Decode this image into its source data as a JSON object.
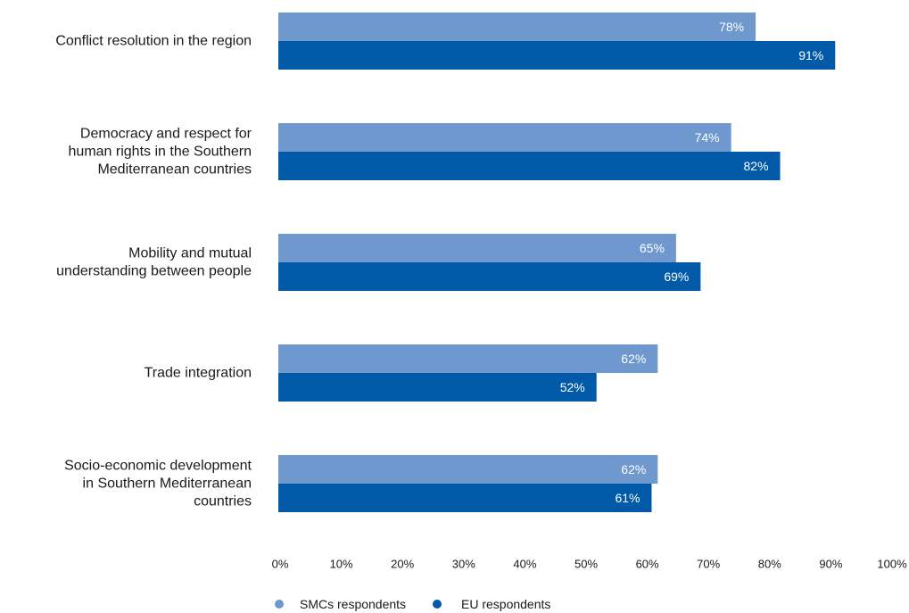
{
  "chart_data": {
    "type": "bar",
    "orientation": "horizontal",
    "categories": [
      [
        "Conflict resolution in the region"
      ],
      [
        "Democracy and respect for",
        "human rights in the Southern",
        "Mediterranean countries"
      ],
      [
        "Mobility and mutual",
        "understanding between people"
      ],
      [
        "Trade integration"
      ],
      [
        "Socio-economic development",
        "in Southern Mediterranean",
        "countries"
      ]
    ],
    "series": [
      {
        "name": "SMCs respondents",
        "color": "#6f98cf",
        "values": [
          78,
          74,
          65,
          62,
          62
        ],
        "labels": [
          "78%",
          "74%",
          "65%",
          "62%",
          "62%"
        ]
      },
      {
        "name": "EU respondents",
        "color": "#005aa7",
        "values": [
          91,
          82,
          69,
          52,
          61
        ],
        "labels": [
          "91%",
          "82%",
          "69%",
          "52%",
          "61%"
        ]
      }
    ],
    "xlim": [
      0,
      100
    ],
    "xticks": [
      0,
      10,
      20,
      30,
      40,
      50,
      60,
      70,
      80,
      90,
      100
    ],
    "xtick_labels": [
      "0%",
      "10%",
      "20%",
      "30%",
      "40%",
      "50%",
      "60%",
      "70%",
      "80%",
      "90%",
      "100%"
    ],
    "grid": false,
    "legend_position": "bottom-left"
  }
}
